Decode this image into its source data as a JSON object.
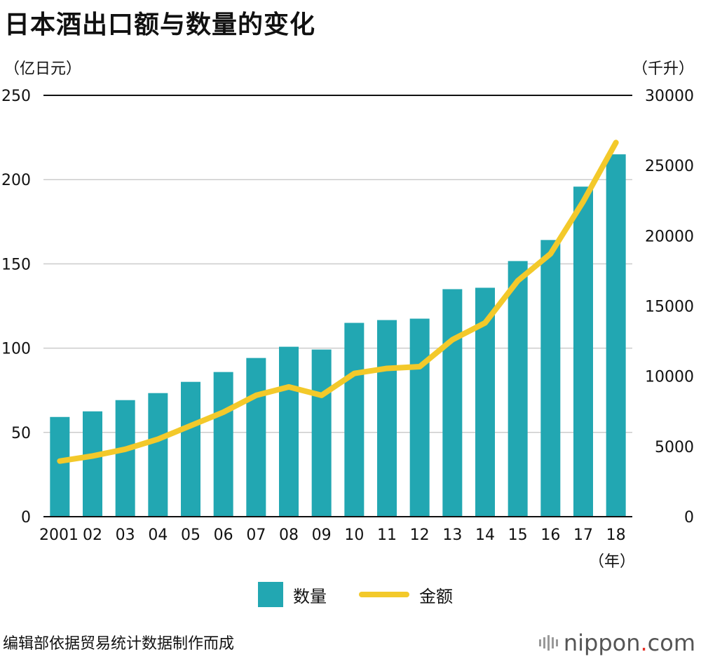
{
  "title": "日本酒出口额与数量的变化",
  "unit_left": "（亿日元）",
  "unit_right": "（千升）",
  "year_unit": "（年）",
  "legend": {
    "bar_label": "数量",
    "line_label": "金额"
  },
  "source": "编辑部依据贸易统计数据制作而成",
  "brand": {
    "name": "nippon",
    "dot": ".",
    "tld": "com"
  },
  "colors": {
    "bar": "#22a7b2",
    "line": "#f3c92a",
    "grid": "#cccccc"
  },
  "chart_data": {
    "type": "bar+line",
    "title": "日本酒出口额与数量的变化",
    "categories": [
      "2001",
      "02",
      "03",
      "04",
      "05",
      "06",
      "07",
      "08",
      "09",
      "10",
      "11",
      "12",
      "13",
      "14",
      "15",
      "16",
      "17",
      "18"
    ],
    "series": [
      {
        "name": "数量",
        "type": "bar",
        "axis": "right",
        "unit": "千升",
        "values": [
          7100,
          7500,
          8300,
          8800,
          9600,
          10300,
          11300,
          12100,
          11900,
          13800,
          14000,
          14100,
          16200,
          16300,
          18200,
          19700,
          23500,
          25800
        ]
      },
      {
        "name": "金额",
        "type": "line",
        "axis": "left",
        "unit": "亿日元",
        "values": [
          33,
          36,
          40,
          46,
          54,
          62,
          72,
          77,
          72,
          85,
          88,
          89,
          105,
          115,
          140,
          156,
          187,
          222
        ]
      }
    ],
    "y_left": {
      "label": "（亿日元）",
      "min": 0,
      "max": 250,
      "ticks": [
        "0",
        "50",
        "100",
        "150",
        "200",
        "250"
      ]
    },
    "y_right": {
      "label": "（千升）",
      "min": 0,
      "max": 30000,
      "ticks": [
        "0",
        "5000",
        "10000",
        "15000",
        "20000",
        "25000",
        "30000"
      ]
    },
    "xlabel": "（年）",
    "grid": true,
    "legend_position": "bottom"
  }
}
